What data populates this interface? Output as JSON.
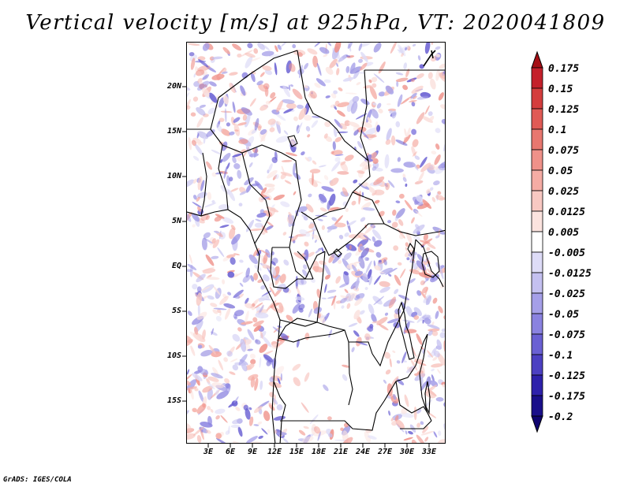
{
  "title": "Vertical velocity [m/s] at 925hPa, VT: 2020041809",
  "footer": "GrADS: IGES/COLA",
  "map": {
    "lat_labels": [
      "20N",
      "15N",
      "10N",
      "5N",
      "EQ",
      "5S",
      "10S",
      "15S"
    ],
    "lon_labels": [
      "3E",
      "6E",
      "9E",
      "12E",
      "15E",
      "18E",
      "21E",
      "24E",
      "27E",
      "30E",
      "33E"
    ],
    "lon_range": [
      0,
      35
    ],
    "lat_range": [
      -20,
      25
    ]
  },
  "colorbar": {
    "labels": [
      "0.175",
      "0.15",
      "0.125",
      "0.1",
      "0.075",
      "0.05",
      "0.025",
      "0.0125",
      "0.005",
      "-0.005",
      "-0.0125",
      "-0.025",
      "-0.05",
      "-0.075",
      "-0.1",
      "-0.125",
      "-0.175",
      "-0.2"
    ],
    "colors": [
      "#a50f15",
      "#c4202b",
      "#d43d3d",
      "#e05a55",
      "#e8776f",
      "#ef9189",
      "#f5aca4",
      "#f8c8c2",
      "#fbe3df",
      "#ffffff",
      "#dedcf7",
      "#c4c0f0",
      "#a59fe8",
      "#8a82e0",
      "#6a60d3",
      "#4c40c2",
      "#2e21ab",
      "#1a0f8a",
      "#0f0470"
    ]
  }
}
